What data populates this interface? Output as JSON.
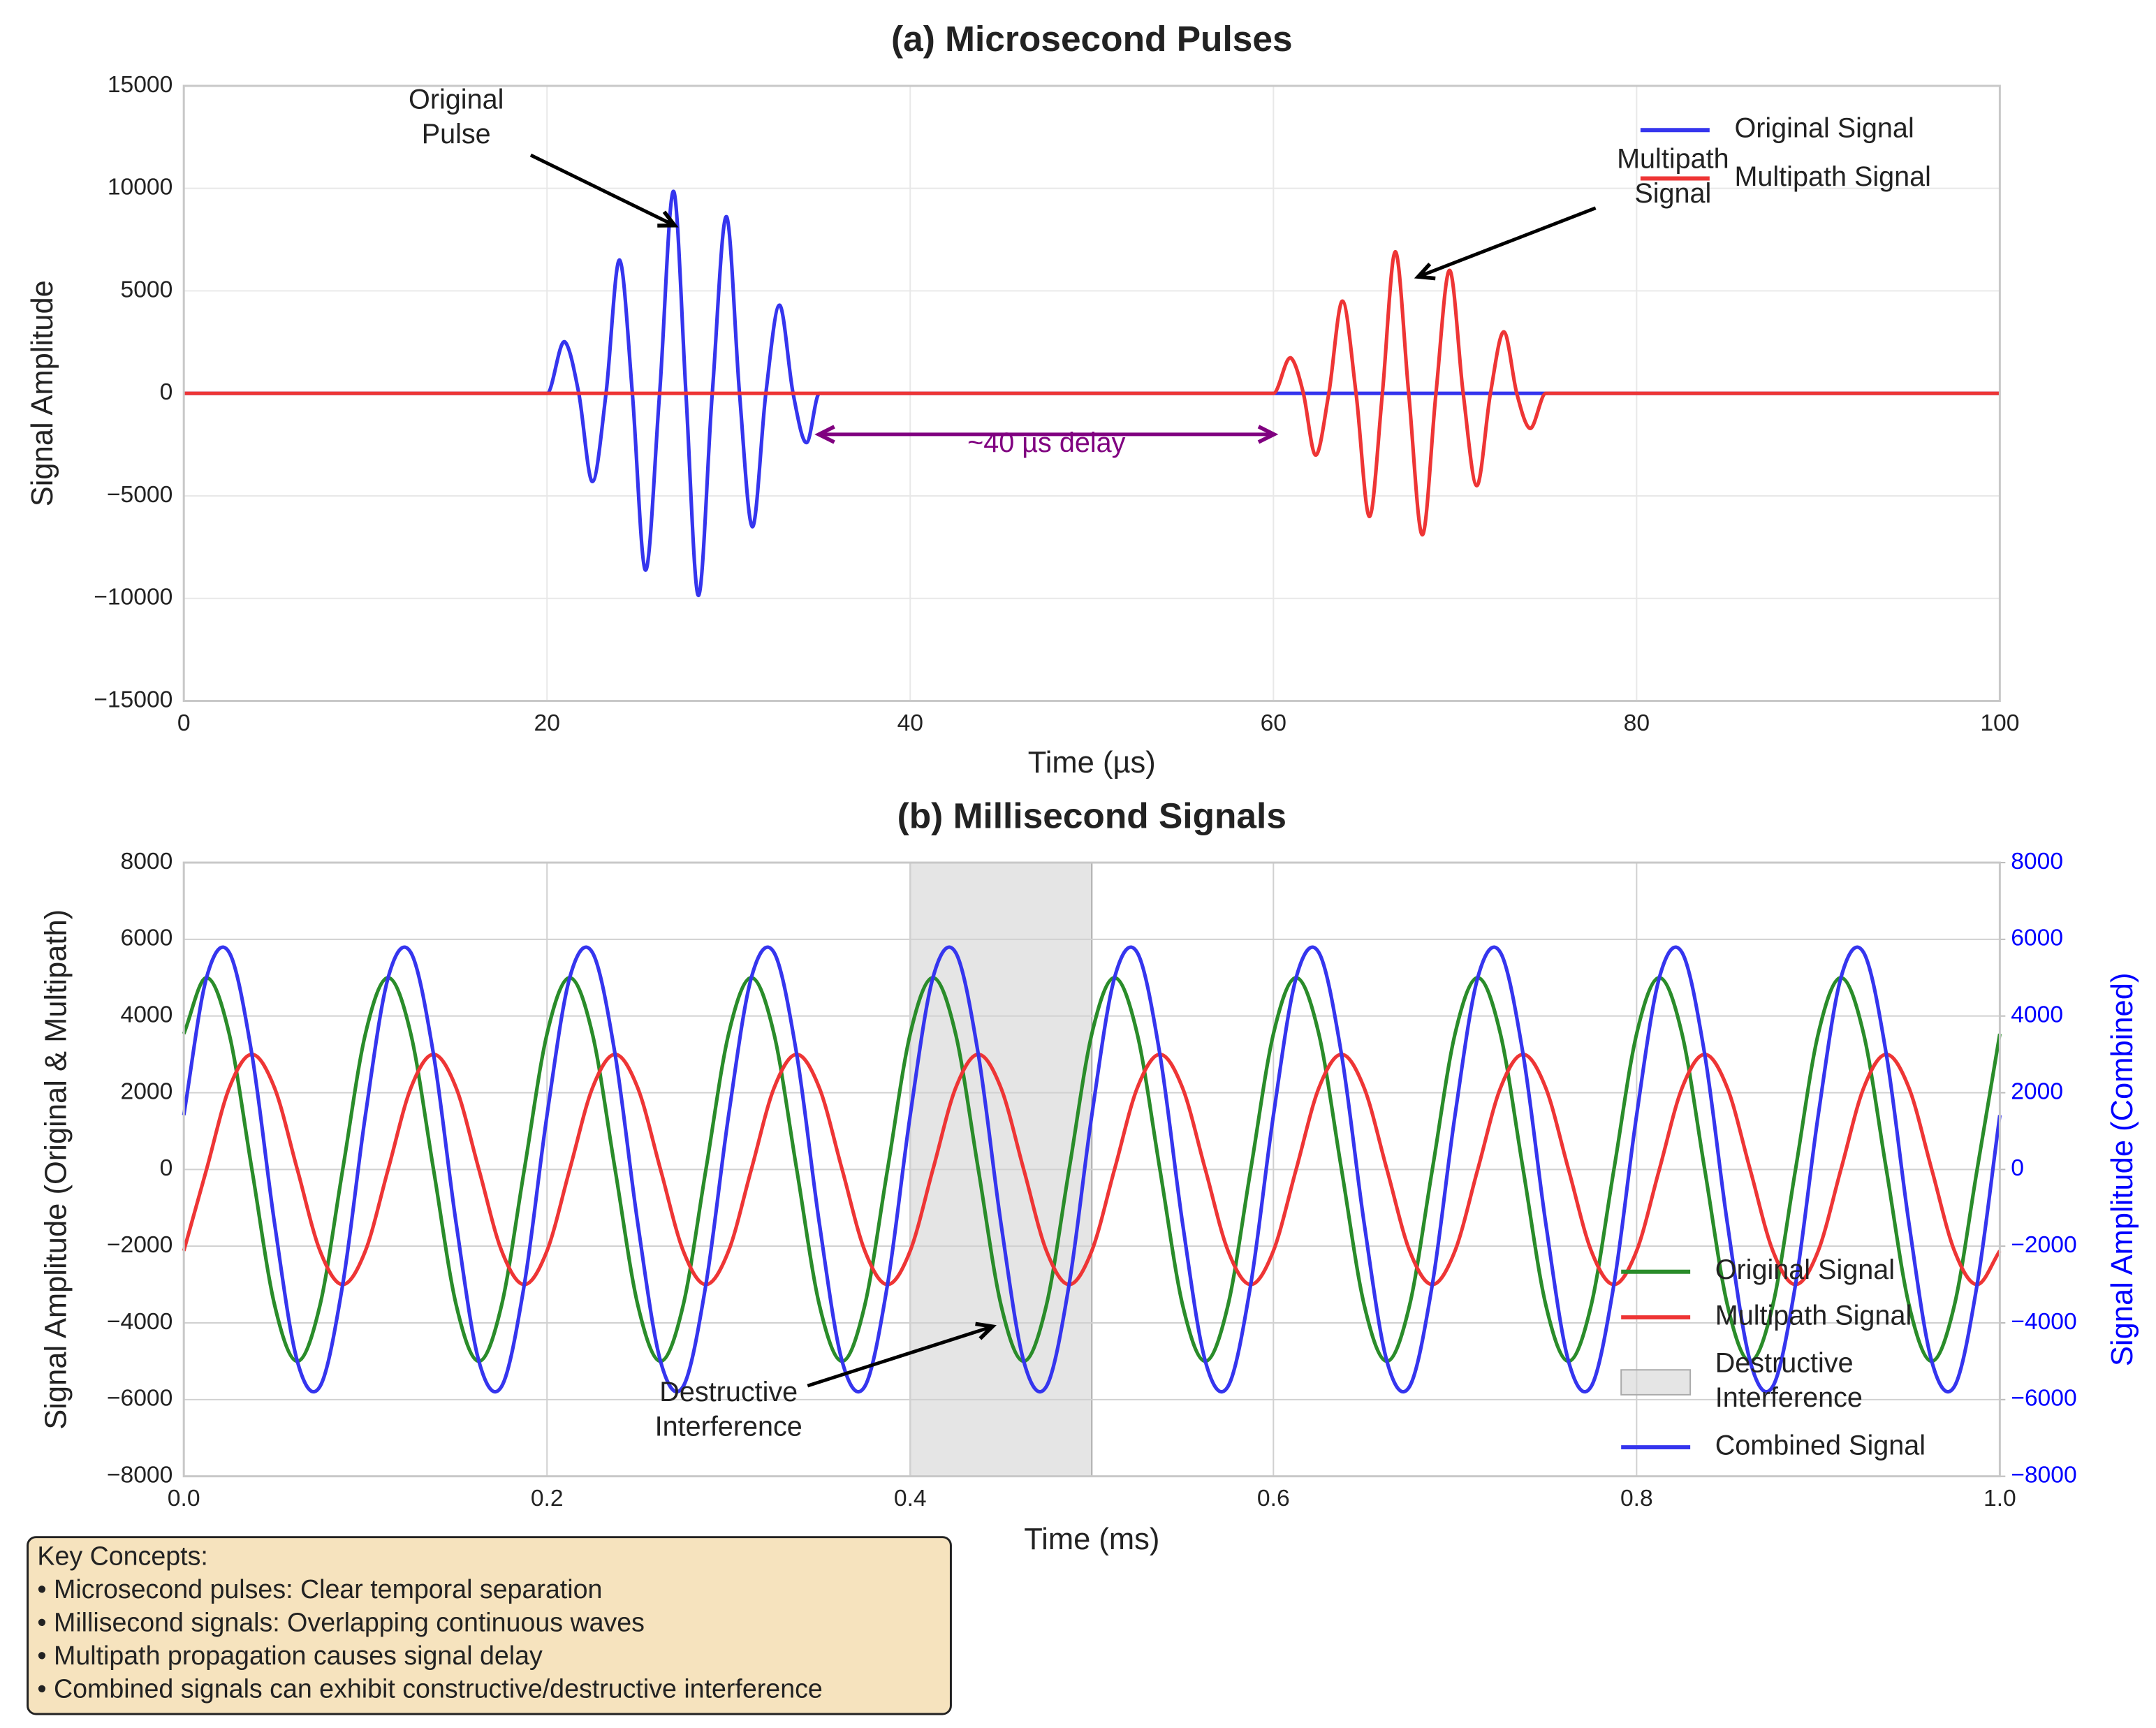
{
  "chart_data": [
    {
      "type": "line",
      "title": "(a) Microsecond Pulses",
      "xlabel": "Time (µs)",
      "ylabel": "Signal Amplitude",
      "xlim": [
        0,
        100
      ],
      "xticks": [
        0,
        20,
        40,
        60,
        80,
        100
      ],
      "ylim": [
        -15000,
        15000
      ],
      "yticks": [
        {
          "value": -15000,
          "label": "−15000"
        },
        {
          "value": -10000,
          "label": "−10000"
        },
        {
          "value": -5000,
          "label": "−5000"
        },
        0,
        5000,
        10000,
        15000
      ],
      "grid": true,
      "legend": "upper right",
      "series": [
        {
          "name": "Original Signal",
          "color": "#3535ee",
          "x": [
            0,
            20,
            21,
            21.75,
            22.5,
            23.25,
            24,
            24.7,
            25.4,
            26.2,
            27,
            27.65,
            28.3,
            29.1,
            29.9,
            30.6,
            31.3,
            32.05,
            32.8,
            33.55,
            34.3,
            35,
            100
          ],
          "values": [
            0,
            0,
            2500,
            0,
            -4300,
            0,
            6500,
            0,
            -8600,
            0,
            9800,
            0,
            -9800,
            0,
            8600,
            0,
            -6500,
            0,
            4300,
            0,
            -2400,
            0,
            0
          ]
        },
        {
          "name": "Multipath Signal",
          "color": "#ee3535",
          "x": [
            0,
            60,
            61,
            61.65,
            62.3,
            63.05,
            63.8,
            64.55,
            65.3,
            66,
            66.7,
            67.45,
            68.2,
            68.95,
            69.7,
            70.45,
            71.2,
            71.95,
            72.7,
            73.4,
            74.1,
            75,
            100
          ],
          "values": [
            0,
            0,
            1700,
            0,
            -3000,
            0,
            4500,
            0,
            -6000,
            0,
            6900,
            0,
            -6900,
            0,
            6000,
            0,
            -4500,
            0,
            3000,
            0,
            -1700,
            0,
            0
          ]
        }
      ],
      "annotations": [
        {
          "text": [
            "Original",
            "Pulse"
          ],
          "xy": [
            27,
            8200
          ],
          "xytext": [
            15,
            13400
          ]
        },
        {
          "text": [
            "Multipath",
            "Signal"
          ],
          "xy": [
            68,
            5700
          ],
          "xytext": [
            82,
            10500
          ]
        },
        {
          "text": [
            "~40 µs delay"
          ],
          "span": [
            35,
            60
          ],
          "y": -2000,
          "xytext": [
            47.5,
            -2500
          ],
          "color": "#800080"
        }
      ]
    },
    {
      "type": "line",
      "title": "(b) Millisecond Signals",
      "xlabel": "Time (ms)",
      "ylabel": "Signal Amplitude (Original & Multipath)",
      "y2label": "Signal Amplitude (Combined)",
      "y2color": "#0000ff",
      "x": [
        0,
        0.0125,
        0.025,
        0.0375,
        0.05,
        0.0625,
        0.075,
        0.0875,
        0.1,
        0.1125,
        0.125,
        0.1375,
        0.15,
        0.1625,
        0.175,
        0.1875,
        0.2,
        0.2125,
        0.225,
        0.2375,
        0.25,
        0.2625,
        0.275,
        0.2875,
        0.3,
        0.3125,
        0.325,
        0.3375,
        0.35,
        0.3625,
        0.375,
        0.3875,
        0.4,
        0.4125,
        0.425,
        0.4375,
        0.45,
        0.4625,
        0.475,
        0.4875,
        0.5,
        0.5125,
        0.525,
        0.5375,
        0.55,
        0.5625,
        0.575,
        0.5875,
        0.6,
        0.6125,
        0.625,
        0.6375,
        0.65,
        0.6625,
        0.675,
        0.6875,
        0.7,
        0.7125,
        0.725,
        0.7375,
        0.75,
        0.7625,
        0.775,
        0.7875,
        0.8,
        0.8125,
        0.825,
        0.8375,
        0.85,
        0.8625,
        0.875,
        0.8875,
        0.9,
        0.9125,
        0.925,
        0.9375,
        0.95,
        0.9625,
        0.975,
        0.9875,
        1
      ],
      "xlim": [
        0,
        1
      ],
      "xticks": [
        {
          "value": 0,
          "label": "0.0"
        },
        0.2,
        0.4,
        0.6,
        0.8,
        {
          "value": 1,
          "label": "1.0"
        }
      ],
      "ylim": [
        -8000,
        8000
      ],
      "yticks": [
        {
          "value": -8000,
          "label": "−8000"
        },
        {
          "value": -6000,
          "label": "−6000"
        },
        {
          "value": -4000,
          "label": "−4000"
        },
        {
          "value": -2000,
          "label": "−2000"
        },
        0,
        2000,
        4000,
        6000,
        8000
      ],
      "y2lim": [
        -8000,
        8000
      ],
      "y2ticks": [
        {
          "value": -8000,
          "label": "−8000"
        },
        {
          "value": -6000,
          "label": "−6000"
        },
        {
          "value": -4000,
          "label": "−4000"
        },
        {
          "value": -2000,
          "label": "−2000"
        },
        0,
        2000,
        4000,
        6000,
        8000
      ],
      "grid": true,
      "legend": "lower right",
      "series": [
        {
          "name": "Original Signal",
          "color": "#2a8c2a",
          "values": [
            3536,
            5000,
            3536,
            0,
            -3536,
            -5000,
            -3536,
            0,
            3536,
            5000,
            3536,
            0,
            -3536,
            -5000,
            -3536,
            0,
            3536,
            5000,
            3536,
            0,
            -3536,
            -5000,
            -3536,
            0,
            3536,
            5000,
            3536,
            0,
            -3536,
            -5000,
            -3536,
            0,
            3536,
            5000,
            3536,
            0,
            -3536,
            -5000,
            -3536,
            0,
            3536,
            5000,
            3536,
            0,
            -3536,
            -5000,
            -3536,
            0,
            3536,
            5000,
            3536,
            0,
            -3536,
            -5000,
            -3536,
            0,
            3536,
            5000,
            3536,
            0,
            -3536,
            -5000,
            -3536,
            0,
            3536,
            5000,
            3536,
            0,
            -3536,
            -5000,
            -3536,
            0,
            3536,
            5000,
            3536,
            0,
            -3536,
            -5000,
            -3536,
            0,
            3536
          ]
        },
        {
          "name": "Multipath Signal",
          "color": "#ee3535",
          "values": [
            -2121,
            0,
            2121,
            3000,
            2121,
            0,
            -2121,
            -3000,
            -2121,
            0,
            2121,
            3000,
            2121,
            0,
            -2121,
            -3000,
            -2121,
            0,
            2121,
            3000,
            2121,
            0,
            -2121,
            -3000,
            -2121,
            0,
            2121,
            3000,
            2121,
            0,
            -2121,
            -3000,
            -2121,
            0,
            2121,
            3000,
            2121,
            0,
            -2121,
            -3000,
            -2121,
            0,
            2121,
            3000,
            2121,
            0,
            -2121,
            -3000,
            -2121,
            0,
            2121,
            3000,
            2121,
            0,
            -2121,
            -3000,
            -2121,
            0,
            2121,
            3000,
            2121,
            0,
            -2121,
            -3000,
            -2121,
            0,
            2121,
            3000,
            2121,
            0,
            -2121,
            -3000,
            -2121,
            0,
            2121,
            3000,
            2121,
            0,
            -2121,
            -3000,
            -2121
          ]
        },
        {
          "name": "Combined Signal",
          "color": "#3535ee",
          "axis": "y2",
          "values": [
            1415,
            5000,
            5657,
            3000,
            -1415,
            -5000,
            -5657,
            -3000,
            1415,
            5000,
            5657,
            3000,
            -1415,
            -5000,
            -5657,
            -3000,
            1415,
            5000,
            5657,
            3000,
            -1415,
            -5000,
            -5657,
            -3000,
            1415,
            5000,
            5657,
            3000,
            -1415,
            -5000,
            -5657,
            -3000,
            1415,
            5000,
            5657,
            3000,
            -1415,
            -5000,
            -5657,
            -3000,
            1415,
            5000,
            5657,
            3000,
            -1415,
            -5000,
            -5657,
            -3000,
            1415,
            5000,
            5657,
            3000,
            -1415,
            -5000,
            -5657,
            -3000,
            1415,
            5000,
            5657,
            3000,
            -1415,
            -5000,
            -5657,
            -3000,
            1415,
            5000,
            5657,
            3000,
            -1415,
            -5000,
            -5657,
            -3000,
            1415,
            5000,
            5657,
            3000,
            -1415,
            -5000,
            -5657,
            -3000,
            1415
          ]
        }
      ],
      "spans": [
        {
          "name": "Destructive Interference",
          "x": [
            0.4,
            0.5
          ],
          "color": "#d3d3d3"
        }
      ],
      "annotations": [
        {
          "text": [
            "Destructive",
            "Interference"
          ],
          "xy": [
            0.445,
            -4100
          ],
          "xytext": [
            0.3,
            -6300
          ]
        }
      ]
    }
  ],
  "textbox": {
    "lines": [
      "Key Concepts:",
      "• Microsecond pulses: Clear temporal separation",
      "• Millisecond signals: Overlapping continuous waves",
      "• Multipath propagation causes signal delay",
      "• Combined signals can exhibit constructive/destructive interference"
    ]
  }
}
